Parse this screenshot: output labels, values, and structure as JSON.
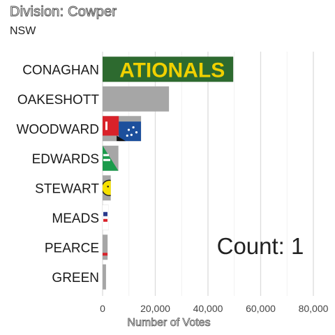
{
  "title": "Division: Cowper",
  "subtitle": "NSW",
  "count_label": "Count:  1",
  "chart_data": {
    "type": "bar",
    "orientation": "horizontal",
    "categories": [
      "CONAGHAN",
      "OAKESHOTT",
      "WOODWARD",
      "EDWARDS",
      "STEWART",
      "MEADS",
      "PEARCE",
      "GREEN"
    ],
    "values": [
      49600,
      25200,
      14600,
      6000,
      3100,
      2300,
      1900,
      1300
    ],
    "xlabel": "Number of Votes",
    "xlim": [
      0,
      88000
    ],
    "xticks": [
      0,
      20000,
      40000,
      60000,
      80000
    ],
    "xtick_labels": [
      "0",
      "20,000",
      "40,000",
      "60,000",
      "80,000"
    ],
    "grid": true,
    "bar_color": "#a6a6a6",
    "bar_logos": {
      "CONAGHAN": "ATIONALS"
    },
    "colors": {
      "nationals_green": "#2d6a2f",
      "nationals_yellow": "#f0d000",
      "ldp_red": "#d9222a",
      "ldp_blue": "#1c4f9c",
      "greens_green": "#1a9b4b",
      "stewart_yellow": "#f5e000"
    }
  }
}
